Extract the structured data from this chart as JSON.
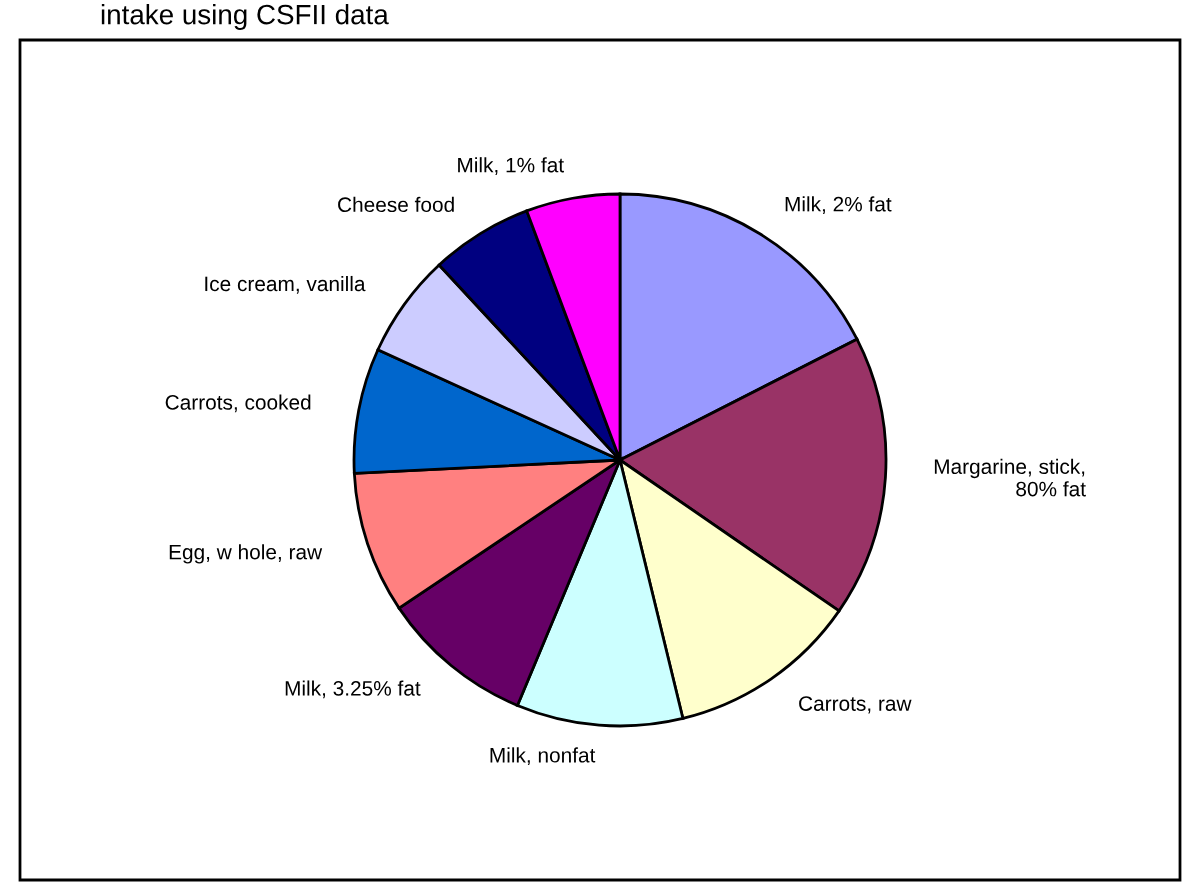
{
  "chart_data": {
    "type": "pie",
    "title": "intake using CSFII data",
    "categories": [
      "Milk, 2% fat",
      "Margarine, stick,\n80% fat",
      "Carrots, raw",
      "Milk, nonfat",
      "Milk, 3.25% fat",
      "Egg, w hole, raw",
      "Carrots, cooked",
      "Ice cream, vanilla",
      "Cheese food",
      "Milk, 1% fat"
    ],
    "values": [
      17.5,
      17.1,
      11.6,
      10.1,
      9.3,
      8.6,
      7.6,
      6.3,
      6.2,
      5.7
    ],
    "colors": [
      "#9999ff",
      "#993366",
      "#ffffcc",
      "#ccffff",
      "#660066",
      "#ff8080",
      "#0066cc",
      "#ccccff",
      "#000080",
      "#ff00ff"
    ],
    "legend": false
  }
}
